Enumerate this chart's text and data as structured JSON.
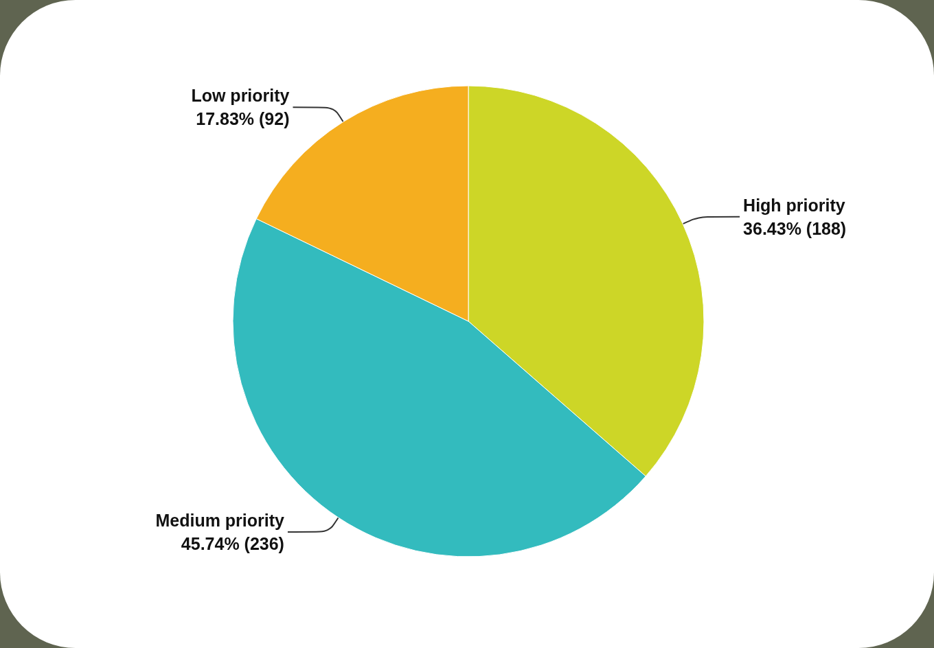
{
  "chart_data": {
    "type": "pie",
    "categories": [
      "High priority",
      "Medium priority",
      "Low priority"
    ],
    "values": [
      188,
      236,
      92
    ],
    "colors": [
      "#cdd627",
      "#33bbbe",
      "#f5ae1f"
    ],
    "value_labels": [
      "36.43% (188)",
      "45.74% (236)",
      "17.83% (92)"
    ],
    "legend": false
  }
}
